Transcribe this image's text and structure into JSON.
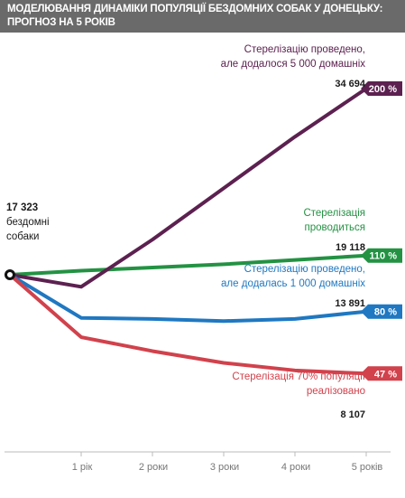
{
  "header": {
    "title_line1": "МОДЕЛЮВАННЯ ДИНАМІКИ ПОПУЛЯЦІЇ БЕЗДОМНИХ СОБАК У ДОНЕЦЬКУ:",
    "title_line2": "ПРОГНОЗ НА 5 РОКІВ"
  },
  "start": {
    "value": "17 323",
    "line1": "бездомні",
    "line2": "собаки"
  },
  "colors": {
    "purple": "#5c2150",
    "green": "#239243",
    "blue": "#1f78c1",
    "red": "#d1424c",
    "axis": "#bbbbbb",
    "tick": "#777777",
    "title_bg": "#6a6a6a"
  },
  "annotations": [
    {
      "id": "purple",
      "line1": "Стерелізацію проведено,",
      "line2": "але додалося 5 000 домашніх",
      "value": "34 694",
      "badge": "200 %"
    },
    {
      "id": "green",
      "line1": "Стерелізація",
      "line2": "проводиться",
      "value": "19 118",
      "badge": "110 %"
    },
    {
      "id": "blue",
      "line1": "Стерелізацію проведено,",
      "line2": "але додалась 1 000 домашніх",
      "value": "13 891",
      "badge": "80 %"
    },
    {
      "id": "red",
      "line1": "Стерелізація 70% популяції",
      "line2": "реалізовано",
      "value": "8 107",
      "badge": "47 %"
    }
  ],
  "chart_data": {
    "type": "line",
    "x": [
      0,
      1,
      2,
      3,
      4,
      5
    ],
    "categories": [
      "",
      "1 рік",
      "2 роки",
      "3 роки",
      "4 роки",
      "5 років"
    ],
    "series": [
      {
        "id": "purple",
        "values": [
          17323,
          16200,
          20600,
          25400,
          30200,
          34694
        ]
      },
      {
        "id": "green",
        "values": [
          17323,
          17700,
          18000,
          18300,
          18700,
          19118
        ]
      },
      {
        "id": "blue",
        "values": [
          17323,
          13300,
          13200,
          13000,
          13200,
          13891
        ]
      },
      {
        "id": "red",
        "values": [
          17323,
          11500,
          10200,
          9100,
          8400,
          8107
        ]
      }
    ],
    "grid": false,
    "xlabel": "",
    "ylabel": ""
  }
}
